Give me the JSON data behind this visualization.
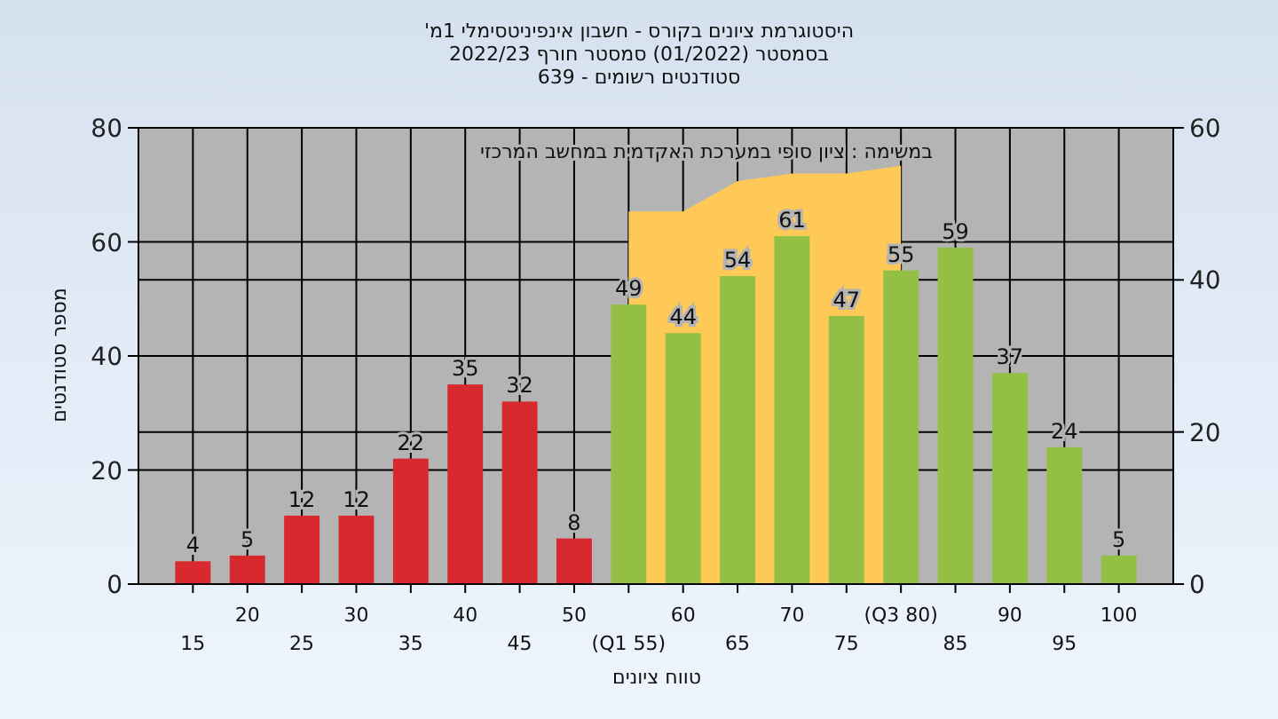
{
  "chart_data": {
    "type": "bar",
    "title": "היסטוגרמת ציונים בקורס - חשבון אינפיניטסימלי 1מ'",
    "subtitle": "בסמסטר  (01/2022)  סמסטר חורף 2022/23\nסטודנטים רשומים - 639",
    "xlabel": "טווח ציונים",
    "ylabel": "מספר סטודנטים",
    "annotations": [
      "במשימה : ציון סופי במערכת האקדמית במחשב המרכזי"
    ],
    "categories": [
      "15",
      "20",
      "25",
      "30",
      "35",
      "40",
      "45",
      "50",
      "(Q1 55)",
      "60",
      "65",
      "70",
      "75",
      "(Q3 80)",
      "85",
      "90",
      "95",
      "100"
    ],
    "series": [
      {
        "colors": [
          "#d82a2e",
          "#d82a2e",
          "#d82a2e",
          "#d82a2e",
          "#d82a2e",
          "#d82a2e",
          "#d82a2e",
          "#d82a2e",
          "#93bf45",
          "#93bf45",
          "#93bf45",
          "#93bf45",
          "#93bf45",
          "#93bf45",
          "#93bf45",
          "#93bf45",
          "#93bf45",
          "#93bf45"
        ],
        "values": [
          4,
          5,
          12,
          12,
          22,
          35,
          32,
          8,
          49,
          44,
          54,
          61,
          47,
          55,
          59,
          37,
          24,
          5
        ],
        "value_labels": [
          "4",
          "5",
          "12",
          "12",
          "22",
          "35",
          "32",
          "8",
          "49",
          "44",
          "54",
          "61",
          "47",
          "55",
          "59",
          "37",
          "24",
          "5"
        ]
      },
      {
        "type": "area",
        "axis": "y2",
        "color": "#ffc957",
        "values": [
          null,
          null,
          null,
          null,
          null,
          null,
          null,
          null,
          49,
          49,
          53,
          54,
          54,
          55,
          null,
          null,
          null,
          null
        ]
      }
    ],
    "ylim": [
      0,
      80
    ],
    "yticks": [
      0,
      20,
      40,
      60,
      80
    ],
    "y2lim": [
      0,
      60
    ],
    "y2ticks": [
      0,
      20,
      40,
      60
    ],
    "grid": true
  }
}
